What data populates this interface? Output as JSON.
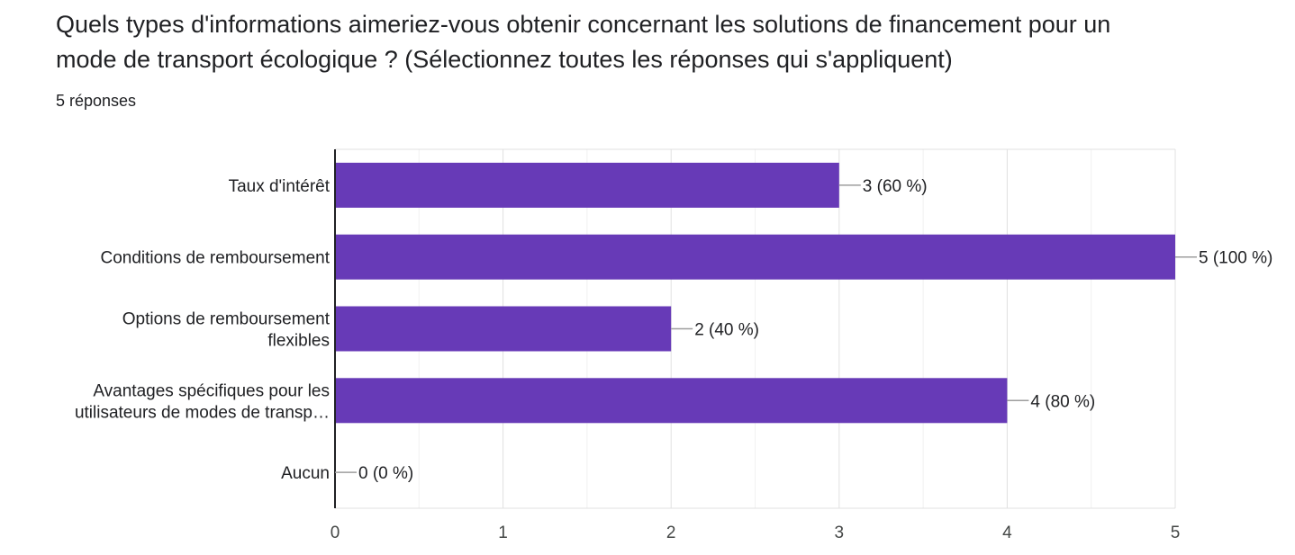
{
  "question": {
    "title_line1": "Quels types d'informations aimeriez-vous obtenir concernant les solutions de financement pour un",
    "title_line2": "mode de transport écologique ? (Sélectionnez toutes les réponses qui s'appliquent)",
    "response_count": "5 réponses"
  },
  "colors": {
    "bar": "#673ab7",
    "grid": "#e8e8e8",
    "axis": "#202124",
    "text": "#202124"
  },
  "chart_data": {
    "type": "bar",
    "orientation": "horizontal",
    "categories": [
      [
        "Taux d'intérêt"
      ],
      [
        "Conditions de remboursement"
      ],
      [
        "Options de remboursement",
        "flexibles"
      ],
      [
        "Avantages spécifiques pour les",
        "utilisateurs de modes de transp…"
      ],
      [
        "Aucun"
      ]
    ],
    "values": [
      3,
      5,
      2,
      4,
      0
    ],
    "value_labels": [
      "3 (60 %)",
      "5 (100 %)",
      "2 (40 %)",
      "4 (80 %)",
      "0 (0 %)"
    ],
    "xlim": [
      0,
      5
    ],
    "x_ticks": [
      0,
      1,
      2,
      3,
      4,
      5
    ],
    "grid": true,
    "title": "",
    "xlabel": "",
    "ylabel": ""
  }
}
